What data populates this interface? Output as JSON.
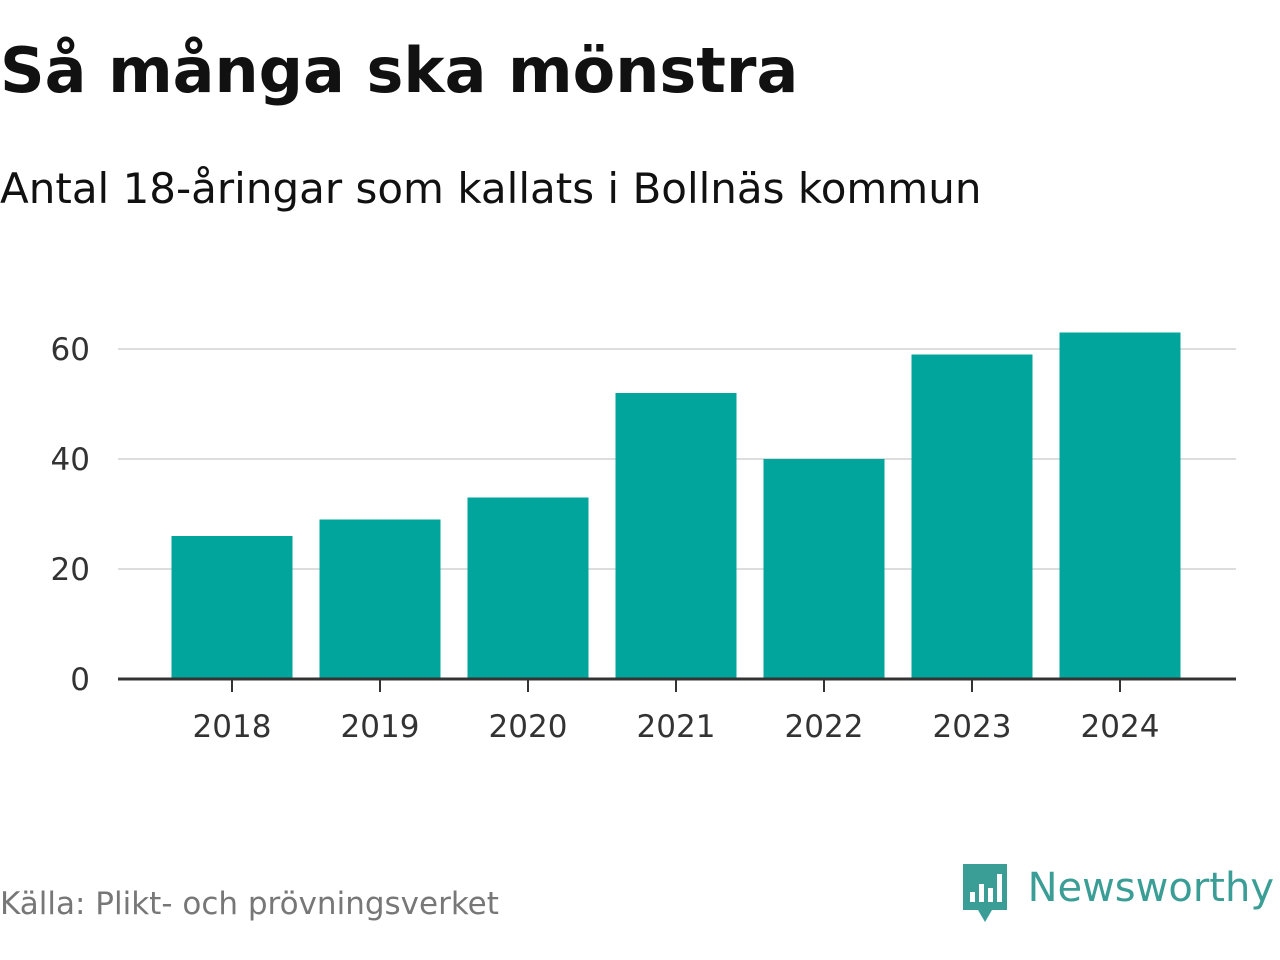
{
  "chart_data": {
    "type": "bar",
    "title": "Så många ska mönstra",
    "subtitle": "Antal 18-åringar som kallats i Bollnäs kommun",
    "categories": [
      "2018",
      "2019",
      "2020",
      "2021",
      "2022",
      "2023",
      "2024"
    ],
    "values": [
      26,
      29,
      33,
      52,
      40,
      59,
      63
    ],
    "xlabel": "",
    "ylabel": "",
    "ylim": [
      0,
      70
    ],
    "yticks": [
      0,
      20,
      40,
      60
    ],
    "grid": true,
    "bar_color": "#02a59b"
  },
  "footer": {
    "source": "Källa: Plikt- och prövningsverket",
    "brand": "Newsworthy",
    "brand_icon": "newsworthy-logo-icon",
    "brand_color": "#3a9e96"
  }
}
